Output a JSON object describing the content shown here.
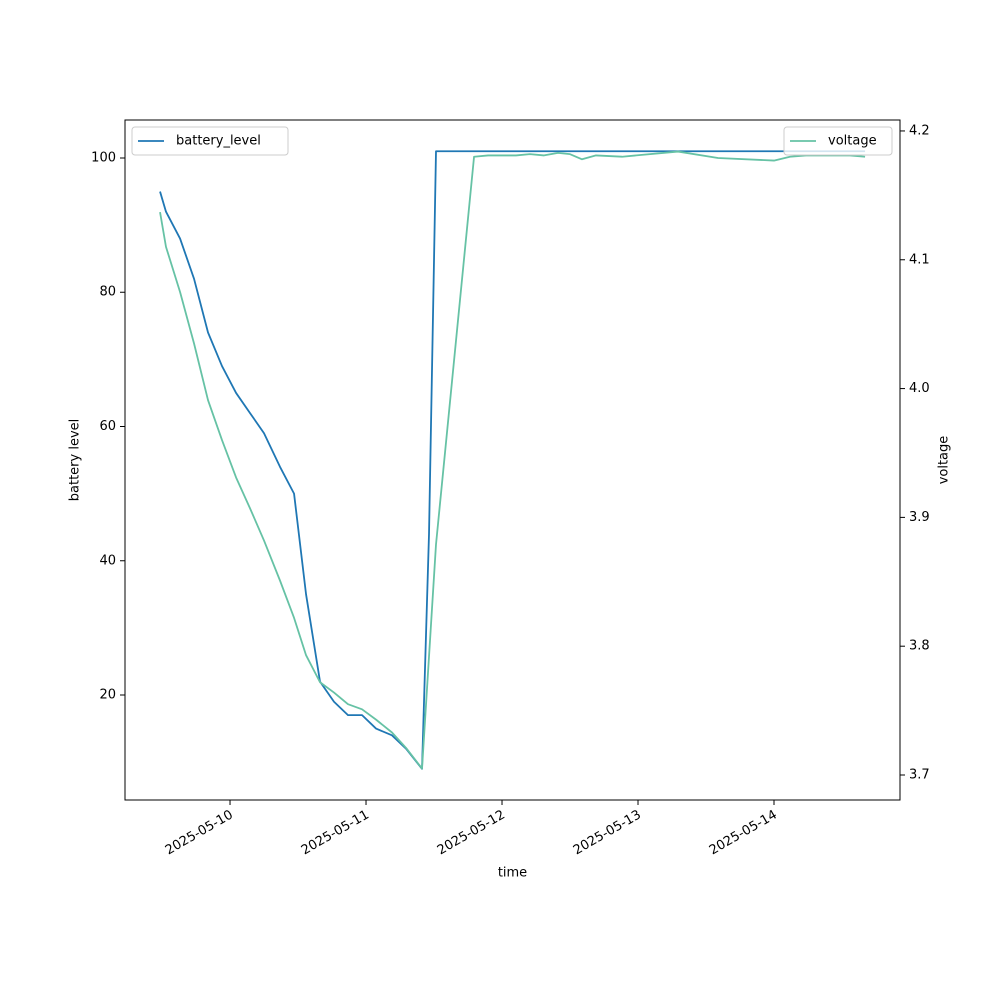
{
  "chart_data": {
    "type": "line",
    "xlabel": "time",
    "ylabel": "battery level",
    "y2label": "voltage",
    "x": [
      "2025-05-09 11:39",
      "2025-05-09 12:42",
      "2025-05-09 15:11",
      "2025-05-09 17:39",
      "2025-05-09 20:07",
      "2025-05-09 22:35",
      "2025-05-10 01:04",
      "2025-05-10 03:32",
      "2025-05-10 06:00",
      "2025-05-10 08:49",
      "2025-05-10 11:18",
      "2025-05-10 13:25",
      "2025-05-10 15:53",
      "2025-05-10 18:21",
      "2025-05-10 20:49",
      "2025-05-10 23:18",
      "2025-05-11 01:46",
      "2025-05-11 04:35",
      "2025-05-11 07:04",
      "2025-05-11 09:53",
      "2025-05-11 11:07",
      "2025-05-11 12:21",
      "2025-05-11 19:04",
      "2025-05-11 21:32",
      "2025-05-12 00:00",
      "2025-05-12 02:28",
      "2025-05-12 04:56",
      "2025-05-12 07:25",
      "2025-05-12 09:53",
      "2025-05-12 12:00",
      "2025-05-12 14:07",
      "2025-05-12 16:35",
      "2025-05-12 21:11",
      "2025-05-13 07:04",
      "2025-05-13 14:07",
      "2025-05-14 00:00",
      "2025-05-14 02:49",
      "2025-05-14 05:39",
      "2025-05-14 13:25",
      "2025-05-14 16:04"
    ],
    "series": [
      {
        "name": "battery_level",
        "color": "#1f77b4",
        "axis": "y",
        "values": [
          95,
          92,
          88,
          82,
          74,
          69,
          65,
          62,
          59,
          54,
          50,
          35,
          22,
          19,
          17,
          17,
          15,
          14,
          12,
          9,
          44,
          101,
          101,
          101,
          101,
          101,
          101,
          101,
          101,
          101,
          101,
          101,
          101,
          101,
          101,
          101,
          101,
          101,
          101,
          101
        ]
      },
      {
        "name": "voltage",
        "color": "#66c2a5",
        "axis": "y2",
        "values": [
          4.137,
          4.11,
          4.075,
          4.035,
          3.991,
          3.96,
          3.931,
          3.907,
          3.882,
          3.851,
          3.822,
          3.793,
          3.772,
          3.764,
          3.755,
          3.751,
          3.743,
          3.733,
          3.721,
          3.705,
          3.792,
          3.879,
          4.18,
          4.181,
          4.181,
          4.181,
          4.182,
          4.181,
          4.183,
          4.182,
          4.178,
          4.181,
          4.18,
          4.184,
          4.179,
          4.177,
          4.18,
          4.181,
          4.181,
          4.18
        ]
      }
    ],
    "xlim": [
      "2025-05-09 05:28",
      "2025-05-14 22:14"
    ],
    "xticks": [
      "2025-05-10",
      "2025-05-11",
      "2025-05-12",
      "2025-05-13",
      "2025-05-14"
    ],
    "ylim": [
      4.36,
      105.66
    ],
    "yticks": [
      20,
      40,
      60,
      80,
      100
    ],
    "y2lim": [
      3.6806,
      4.2085
    ],
    "y2ticks": [
      3.7,
      3.8,
      3.9,
      {
        "value": 4,
        "label": "4.0"
      },
      4.1,
      4.2
    ],
    "legend": {
      "y": "upper left",
      "y2": "upper right"
    },
    "grid": false
  }
}
